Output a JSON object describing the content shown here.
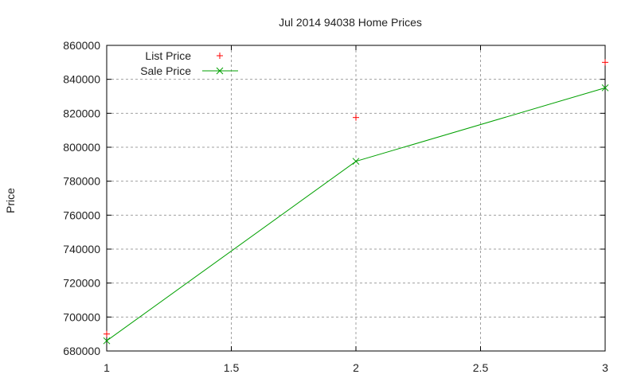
{
  "chart_data": {
    "type": "line",
    "title": "Jul 2014 94038 Home Prices",
    "xlabel": "",
    "ylabel": "Price",
    "xlim": [
      1,
      3
    ],
    "ylim": [
      680000,
      860000
    ],
    "x_ticks": [
      "1",
      "1.5",
      "2",
      "2.5",
      "3"
    ],
    "y_ticks": [
      "680000",
      "700000",
      "720000",
      "740000",
      "760000",
      "780000",
      "800000",
      "820000",
      "840000",
      "860000"
    ],
    "grid": true,
    "legend_position": "top-left",
    "x": [
      1,
      2,
      3
    ],
    "series": [
      {
        "name": "List Price",
        "style": "points",
        "marker": "+",
        "color": "#ff0000",
        "values": [
          690000,
          817500,
          850000
        ]
      },
      {
        "name": "Sale Price",
        "style": "linespoints",
        "marker": "x",
        "color": "#00a000",
        "values": [
          686000,
          791700,
          835000
        ]
      }
    ]
  }
}
